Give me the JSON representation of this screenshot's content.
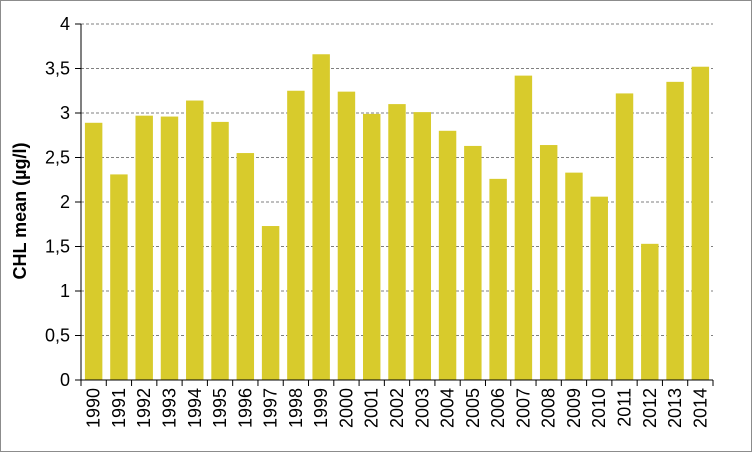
{
  "chart_data": {
    "type": "bar",
    "title": "",
    "xlabel": "",
    "ylabel": "CHL mean (µg/l)",
    "ylim": [
      0,
      4
    ],
    "yticks": [
      "0",
      "0,5",
      "1",
      "1,5",
      "2",
      "2,5",
      "3",
      "3,5",
      "4"
    ],
    "grid": true,
    "bar_color": "#d8cb2c",
    "categories": [
      "1990",
      "1991",
      "1992",
      "1993",
      "1994",
      "1995",
      "1996",
      "1997",
      "1998",
      "1999",
      "2000",
      "2001",
      "2002",
      "2003",
      "2004",
      "2005",
      "2006",
      "2007",
      "2008",
      "2009",
      "2010",
      "2011",
      "2012",
      "2013",
      "2014"
    ],
    "values": [
      2.89,
      2.31,
      2.97,
      2.96,
      3.14,
      2.9,
      2.55,
      1.73,
      3.25,
      3.66,
      3.24,
      2.99,
      3.1,
      3.01,
      2.8,
      2.63,
      2.26,
      3.42,
      2.64,
      2.33,
      2.06,
      3.22,
      1.53,
      3.35,
      3.52
    ]
  }
}
